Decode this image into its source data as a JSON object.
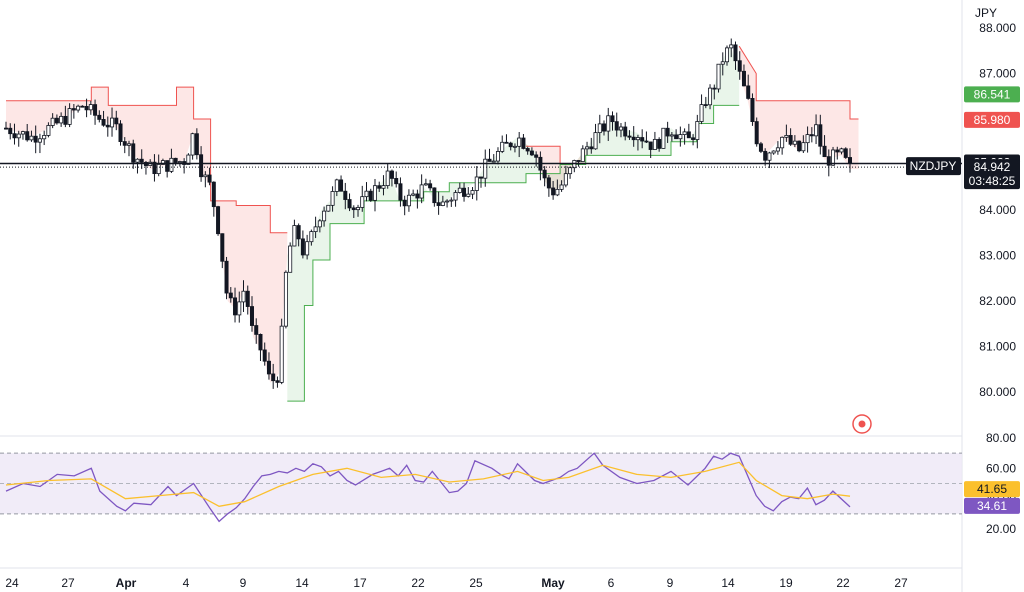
{
  "chart_data": [
    {
      "type": "candlestick",
      "symbol": "NZDJPY",
      "currency": "JPY",
      "y_ticks": [
        "80.000",
        "81.000",
        "82.000",
        "83.000",
        "84.000",
        "85.000",
        "86.000",
        "87.000",
        "88.000"
      ],
      "ylim": [
        79.7,
        88.2
      ],
      "x_ticks": [
        "24",
        "27",
        "Apr",
        "4",
        "9",
        "14",
        "17",
        "22",
        "25",
        "May",
        "6",
        "9",
        "14",
        "19",
        "22",
        "27"
      ],
      "price_line": 84.942,
      "price_label": "84.942",
      "countdown": "03:48:25",
      "high_line": 85.022,
      "high_label": "85.022",
      "supertrend_upper_label": "85.980",
      "supertrend_lower_label": "86.541",
      "supertrend_upper": 85.98,
      "supertrend_lower": 86.541,
      "colors": {
        "up": "#26a69a",
        "down": "#ef5350",
        "candle": "#131722",
        "upper_band": "#ef5350",
        "lower_band": "#4caf50"
      },
      "price_points": [
        [
          0,
          85.8
        ],
        [
          3,
          85.6
        ],
        [
          6,
          85.9
        ],
        [
          9,
          86.3
        ],
        [
          11,
          86.0
        ],
        [
          13,
          85.8
        ],
        [
          15,
          85.2
        ],
        [
          17,
          84.9
        ],
        [
          19,
          85.0
        ],
        [
          21,
          85.1
        ],
        [
          22,
          85.7
        ],
        [
          23,
          84.8
        ],
        [
          24,
          84.5
        ],
        [
          25,
          83.5
        ],
        [
          26,
          82.0
        ],
        [
          27,
          81.8
        ],
        [
          28,
          82.3
        ],
        [
          29,
          81.2
        ],
        [
          30,
          80.9
        ],
        [
          31,
          80.2
        ],
        [
          32,
          80.4
        ],
        [
          33,
          83.0
        ],
        [
          34,
          83.6
        ],
        [
          35,
          83.0
        ],
        [
          36,
          83.5
        ],
        [
          37,
          84.0
        ],
        [
          38,
          84.2
        ],
        [
          39,
          84.6
        ],
        [
          40,
          84.3
        ],
        [
          41,
          84.0
        ],
        [
          43,
          84.4
        ],
        [
          45,
          84.8
        ],
        [
          46,
          84.3
        ],
        [
          47,
          84.2
        ],
        [
          49,
          84.5
        ],
        [
          51,
          84.1
        ],
        [
          53,
          84.4
        ],
        [
          55,
          84.6
        ],
        [
          56,
          84.9
        ],
        [
          58,
          85.3
        ],
        [
          60,
          85.6
        ],
        [
          62,
          85.3
        ],
        [
          63,
          84.7
        ],
        [
          64,
          84.4
        ],
        [
          65,
          84.5
        ],
        [
          67,
          85.1
        ],
        [
          69,
          85.6
        ],
        [
          71,
          86.0
        ],
        [
          72,
          85.8
        ],
        [
          74,
          85.7
        ],
        [
          76,
          85.4
        ],
        [
          78,
          85.8
        ],
        [
          80,
          85.5
        ],
        [
          81,
          85.8
        ],
        [
          82,
          86.4
        ],
        [
          83,
          86.7
        ],
        [
          84,
          87.3
        ],
        [
          85,
          87.6
        ],
        [
          86,
          87.0
        ],
        [
          87,
          86.4
        ],
        [
          88,
          85.6
        ],
        [
          89,
          85.2
        ],
        [
          90,
          85.4
        ],
        [
          91,
          85.6
        ],
        [
          93,
          85.3
        ],
        [
          95,
          85.8
        ],
        [
          96,
          85.1
        ],
        [
          98,
          85.2
        ],
        [
          99,
          84.9
        ]
      ],
      "upper_band_points": [
        [
          0,
          86.4
        ],
        [
          10,
          86.4
        ],
        [
          10,
          86.7
        ],
        [
          12,
          86.7
        ],
        [
          12,
          86.3
        ],
        [
          16,
          86.3
        ],
        [
          16,
          86.3
        ],
        [
          20,
          86.3
        ],
        [
          20,
          86.7
        ],
        [
          22,
          86.7
        ],
        [
          22,
          86.0
        ],
        [
          24,
          86.0
        ],
        [
          24,
          84.2
        ],
        [
          27,
          84.2
        ],
        [
          27,
          84.1
        ],
        [
          31,
          84.1
        ],
        [
          31,
          83.5
        ],
        [
          33,
          83.5
        ]
      ],
      "lower_band_points": [
        [
          33,
          79.8
        ],
        [
          35,
          79.8
        ],
        [
          35,
          81.9
        ],
        [
          36,
          81.9
        ],
        [
          36,
          82.9
        ],
        [
          38,
          82.9
        ],
        [
          38,
          83.7
        ],
        [
          42,
          83.7
        ],
        [
          42,
          84.2
        ],
        [
          49,
          84.2
        ],
        [
          49,
          84.4
        ],
        [
          52,
          84.4
        ],
        [
          52,
          84.6
        ],
        [
          61,
          84.6
        ],
        [
          61,
          84.8
        ],
        [
          65,
          84.8
        ],
        [
          65,
          85.0
        ],
        [
          68,
          85.0
        ],
        [
          68,
          85.2
        ],
        [
          78,
          85.2
        ],
        [
          78,
          85.5
        ],
        [
          81,
          85.5
        ],
        [
          81,
          85.9
        ],
        [
          83,
          85.9
        ],
        [
          83,
          86.3
        ],
        [
          86,
          86.3
        ]
      ],
      "upper_band_points_2": [
        [
          61,
          85.4
        ],
        [
          65,
          85.4
        ],
        [
          65,
          85.0
        ],
        [
          68,
          85.0
        ]
      ],
      "upper_band_points_3": [
        [
          86,
          87.6
        ],
        [
          88,
          87.0
        ],
        [
          88,
          86.4
        ],
        [
          99,
          86.4
        ],
        [
          99,
          86.0
        ],
        [
          100,
          86.0
        ]
      ]
    },
    {
      "type": "line",
      "indicator": "RSI",
      "y_ticks": [
        "20.00",
        "40.00",
        "60.00",
        "80.00"
      ],
      "ylim": [
        10,
        82
      ],
      "rsi_label": "34.61",
      "ma_label": "41.65",
      "colors": {
        "rsi": "#7e57c2",
        "ma": "#fbc02d",
        "band": "#ede7f6"
      },
      "rsi_points": [
        [
          0,
          45
        ],
        [
          2,
          50
        ],
        [
          4,
          48
        ],
        [
          6,
          56
        ],
        [
          8,
          55
        ],
        [
          10,
          60
        ],
        [
          11,
          45
        ],
        [
          13,
          35
        ],
        [
          14,
          32
        ],
        [
          15,
          37
        ],
        [
          17,
          36
        ],
        [
          19,
          48
        ],
        [
          20,
          42
        ],
        [
          22,
          50
        ],
        [
          24,
          33
        ],
        [
          25,
          25
        ],
        [
          26,
          30
        ],
        [
          27,
          34
        ],
        [
          28,
          40
        ],
        [
          29,
          48
        ],
        [
          30,
          55
        ],
        [
          31,
          56
        ],
        [
          32,
          58
        ],
        [
          33,
          57
        ],
        [
          34,
          60
        ],
        [
          35,
          58
        ],
        [
          36,
          63
        ],
        [
          37,
          61
        ],
        [
          38,
          55
        ],
        [
          39,
          58
        ],
        [
          40,
          52
        ],
        [
          41,
          49
        ],
        [
          43,
          56
        ],
        [
          45,
          60
        ],
        [
          46,
          55
        ],
        [
          47,
          62
        ],
        [
          48,
          52
        ],
        [
          49,
          51
        ],
        [
          50,
          58
        ],
        [
          52,
          44
        ],
        [
          53,
          45
        ],
        [
          54,
          50
        ],
        [
          55,
          65
        ],
        [
          57,
          60
        ],
        [
          58,
          56
        ],
        [
          59,
          53
        ],
        [
          60,
          63
        ],
        [
          62,
          52
        ],
        [
          63,
          50
        ],
        [
          65,
          54
        ],
        [
          66,
          58
        ],
        [
          67,
          60
        ],
        [
          69,
          70
        ],
        [
          70,
          62
        ],
        [
          72,
          54
        ],
        [
          74,
          50
        ],
        [
          76,
          52
        ],
        [
          78,
          58
        ],
        [
          80,
          49
        ],
        [
          82,
          60
        ],
        [
          83,
          68
        ],
        [
          84,
          66
        ],
        [
          85,
          70
        ],
        [
          86,
          68
        ],
        [
          87,
          55
        ],
        [
          88,
          42
        ],
        [
          89,
          35
        ],
        [
          90,
          32
        ],
        [
          91,
          38
        ],
        [
          92,
          41
        ],
        [
          93,
          40
        ],
        [
          94,
          47
        ],
        [
          95,
          36
        ],
        [
          96,
          39
        ],
        [
          97,
          45
        ],
        [
          99,
          34.6
        ]
      ],
      "ma_points": [
        [
          0,
          49
        ],
        [
          5,
          52
        ],
        [
          10,
          53
        ],
        [
          14,
          40
        ],
        [
          18,
          42
        ],
        [
          22,
          44
        ],
        [
          25,
          35
        ],
        [
          28,
          38
        ],
        [
          32,
          48
        ],
        [
          36,
          56
        ],
        [
          40,
          60
        ],
        [
          44,
          54
        ],
        [
          48,
          56
        ],
        [
          52,
          51
        ],
        [
          56,
          53
        ],
        [
          60,
          58
        ],
        [
          63,
          52
        ],
        [
          66,
          54
        ],
        [
          70,
          62
        ],
        [
          74,
          56
        ],
        [
          78,
          54
        ],
        [
          82,
          58
        ],
        [
          86,
          64
        ],
        [
          88,
          52
        ],
        [
          91,
          42
        ],
        [
          94,
          40
        ],
        [
          97,
          43
        ],
        [
          99,
          41.65
        ]
      ]
    }
  ]
}
